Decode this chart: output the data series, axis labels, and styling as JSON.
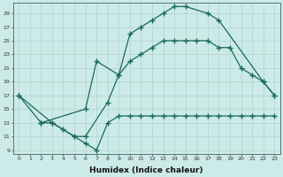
{
  "background_color": "#cceae7",
  "grid_color": "#b0d4d0",
  "line_color": "#1a6b5a",
  "marker": "+",
  "markersize": 4,
  "markeredgewidth": 1.0,
  "linewidth": 0.9,
  "xlabel": "Humidex (Indice chaleur)",
  "xlabel_fontsize": 6.5,
  "ylabel_ticks": [
    9,
    11,
    13,
    15,
    17,
    19,
    21,
    23,
    25,
    27,
    29
  ],
  "xlabel_ticks": [
    0,
    1,
    2,
    3,
    4,
    5,
    6,
    7,
    8,
    9,
    10,
    11,
    12,
    13,
    14,
    15,
    16,
    17,
    18,
    19,
    20,
    21,
    22,
    23
  ],
  "xlim": [
    -0.5,
    23.5
  ],
  "ylim": [
    8.5,
    30.5
  ],
  "line_upper_x": [
    0,
    3,
    5,
    6,
    8,
    9,
    10,
    11,
    12,
    13,
    14,
    15,
    17,
    18,
    22,
    23
  ],
  "line_upper_y": [
    17,
    13,
    11,
    11,
    16,
    20,
    26,
    27,
    28,
    29,
    30,
    30,
    29,
    28,
    19,
    17
  ],
  "line_mid_x": [
    0,
    2,
    6,
    7,
    9,
    10,
    11,
    12,
    13,
    14,
    15,
    16,
    17,
    18,
    19,
    20,
    21,
    22,
    23
  ],
  "line_mid_y": [
    17,
    13,
    15,
    22,
    20,
    22,
    23,
    24,
    25,
    25,
    25,
    25,
    25,
    24,
    24,
    21,
    20,
    19,
    17
  ],
  "line_low_x": [
    2,
    3,
    4,
    5,
    6,
    7,
    8,
    9,
    10,
    11,
    12,
    13,
    14,
    15,
    16,
    17,
    18,
    19,
    20,
    21,
    22,
    23
  ],
  "line_low_y": [
    13,
    13,
    12,
    11,
    10,
    9,
    13,
    14,
    14,
    14,
    14,
    14,
    14,
    14,
    14,
    14,
    14,
    14,
    14,
    14,
    14,
    14
  ]
}
